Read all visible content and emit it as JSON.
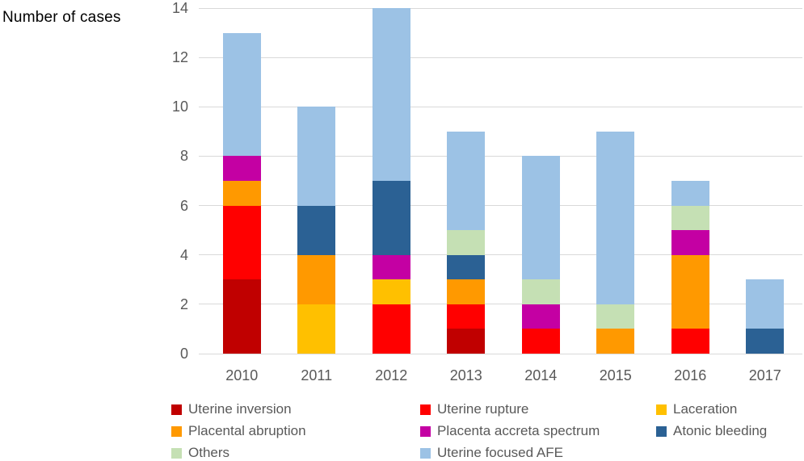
{
  "chart_data": {
    "type": "bar",
    "stacked": true,
    "title": "Number of cases",
    "categories": [
      "2010",
      "2011",
      "2012",
      "2013",
      "2014",
      "2015",
      "2016",
      "2017"
    ],
    "series": [
      {
        "name": "Uterine inversion",
        "color": "#C00000",
        "values": [
          3,
          0,
          0,
          1,
          0,
          0,
          0,
          0
        ]
      },
      {
        "name": "Uterine rupture",
        "color": "#FF0000",
        "values": [
          3,
          0,
          2,
          1,
          1,
          0,
          1,
          0
        ]
      },
      {
        "name": "Laceration",
        "color": "#FFC000",
        "values": [
          0,
          2,
          1,
          0,
          0,
          0,
          0,
          0
        ]
      },
      {
        "name": "Placental abruption",
        "color": "#FF9900",
        "values": [
          1,
          2,
          0,
          1,
          0,
          1,
          3,
          0
        ]
      },
      {
        "name": "Placenta accreta spectrum",
        "color": "#C400A3",
        "values": [
          1,
          0,
          1,
          0,
          1,
          0,
          1,
          0
        ]
      },
      {
        "name": "Atonic bleeding",
        "color": "#2B6194",
        "values": [
          0,
          2,
          3,
          1,
          0,
          0,
          0,
          1
        ]
      },
      {
        "name": "Others",
        "color": "#C5E0B4",
        "values": [
          0,
          0,
          0,
          1,
          1,
          1,
          1,
          0
        ]
      },
      {
        "name": "Uterine focused AFE",
        "color": "#9CC2E5",
        "values": [
          5,
          4,
          7,
          4,
          5,
          7,
          1,
          2
        ]
      }
    ],
    "totals": [
      13,
      10,
      14,
      9,
      8,
      9,
      7,
      3
    ],
    "ylabel": "Number of cases",
    "xlabel": "",
    "ylim": [
      0,
      14
    ],
    "ytick_step": 2,
    "yticks": [
      "0",
      "2",
      "4",
      "6",
      "8",
      "10",
      "12",
      "14"
    ],
    "grid": true,
    "legend_position": "bottom"
  },
  "colors": {
    "gridline": "#d9d9d9",
    "tick_text": "#595959",
    "title_text": "#000000",
    "background": "#ffffff"
  }
}
